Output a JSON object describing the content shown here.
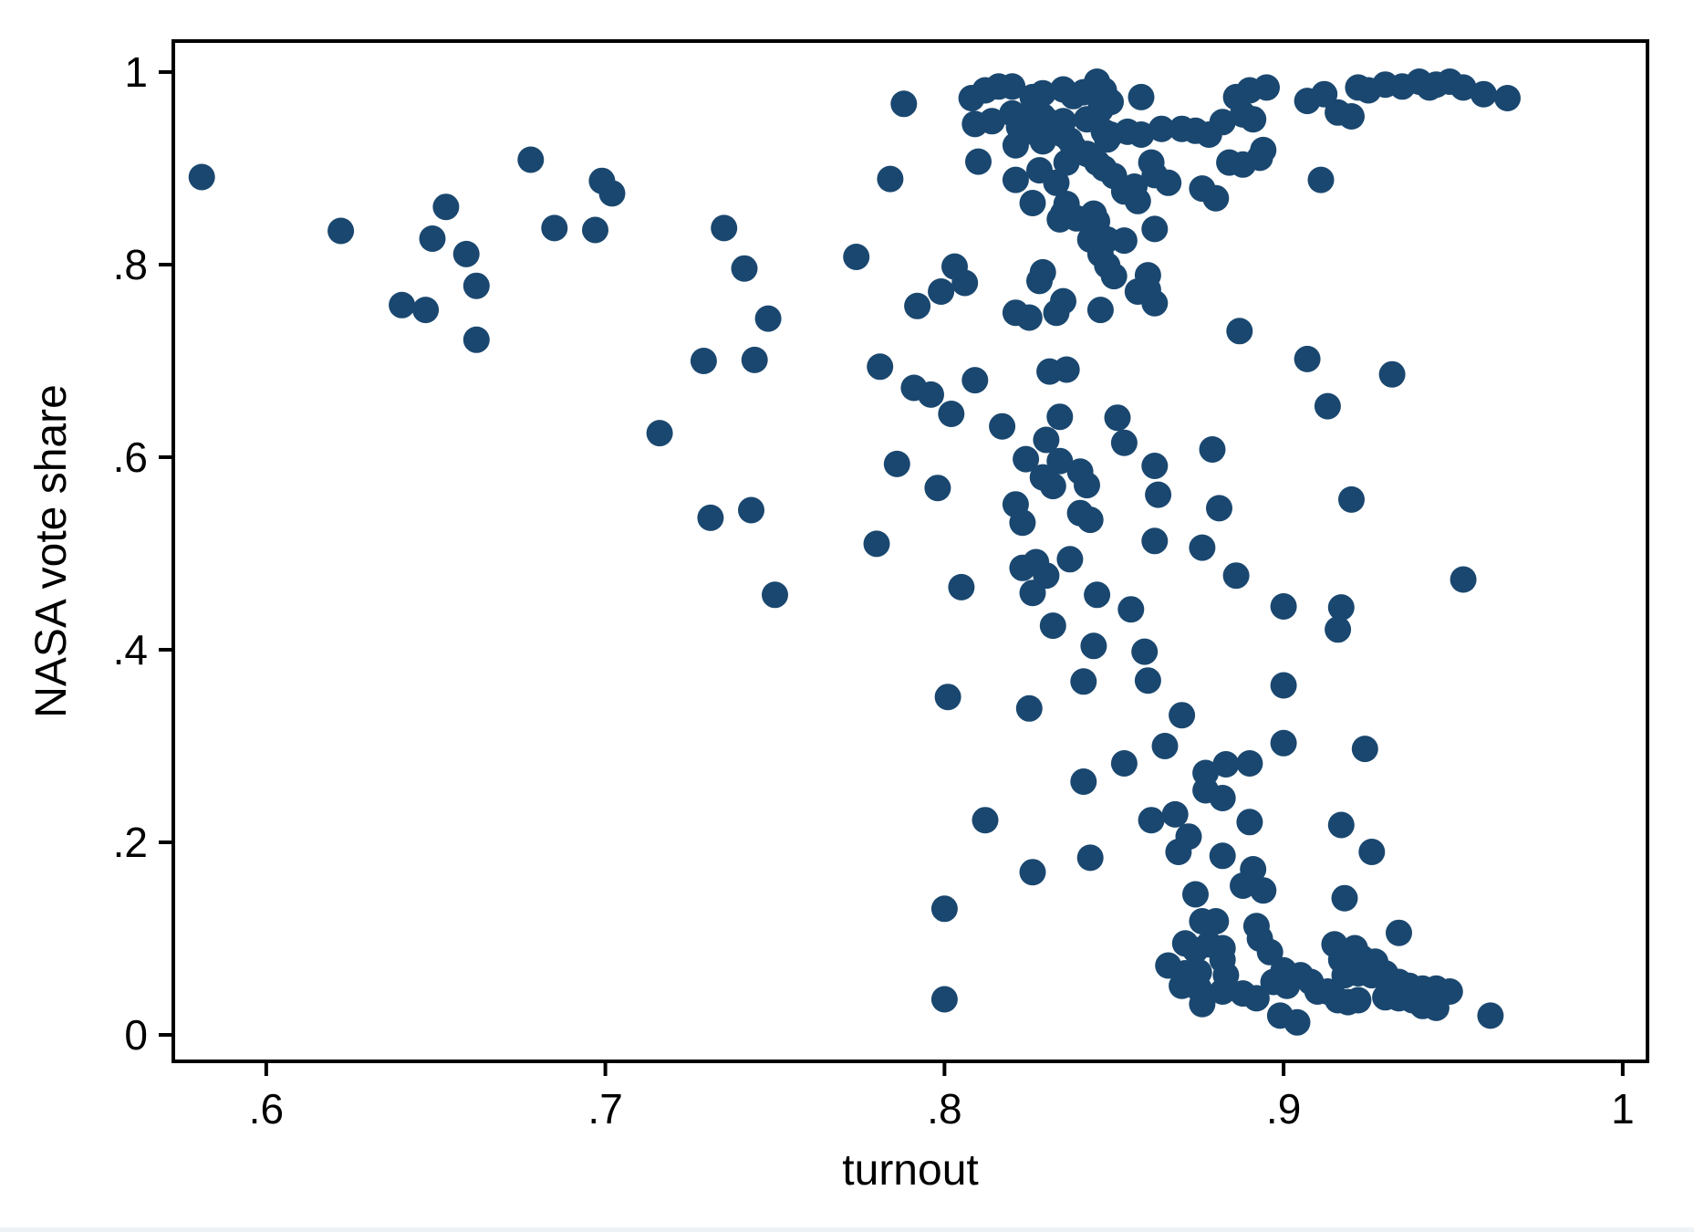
{
  "chart_data": {
    "type": "scatter",
    "title": "",
    "xlabel": "turnout",
    "ylabel": "NASA vote share",
    "xlim": [
      0.5726,
      1.0073
    ],
    "ylim": [
      -0.0275,
      1.0322
    ],
    "grid": false,
    "legend": "none",
    "marker_color": "#1a476f",
    "marker_radius_px": 14.5,
    "x_ticks": [
      {
        "value": 0.6,
        "label": ".6"
      },
      {
        "value": 0.7,
        "label": ".7"
      },
      {
        "value": 0.8,
        "label": ".8"
      },
      {
        "value": 0.9,
        "label": ".9"
      },
      {
        "value": 1.0,
        "label": "1"
      }
    ],
    "y_ticks": [
      {
        "value": 0.0,
        "label": "0"
      },
      {
        "value": 0.2,
        "label": ".2"
      },
      {
        "value": 0.4,
        "label": ".4"
      },
      {
        "value": 0.6,
        "label": ".6"
      },
      {
        "value": 0.8,
        "label": ".8"
      },
      {
        "value": 1.0,
        "label": "1"
      }
    ],
    "points": [
      [
        0.581,
        0.891
      ],
      [
        0.622,
        0.835
      ],
      [
        0.653,
        0.86
      ],
      [
        0.649,
        0.827
      ],
      [
        0.659,
        0.811
      ],
      [
        0.662,
        0.778
      ],
      [
        0.64,
        0.758
      ],
      [
        0.647,
        0.753
      ],
      [
        0.662,
        0.722
      ],
      [
        0.678,
        0.909
      ],
      [
        0.685,
        0.838
      ],
      [
        0.699,
        0.887
      ],
      [
        0.702,
        0.874
      ],
      [
        0.697,
        0.836
      ],
      [
        0.716,
        0.625
      ],
      [
        0.735,
        0.838
      ],
      [
        0.741,
        0.796
      ],
      [
        0.774,
        0.808
      ],
      [
        0.748,
        0.744
      ],
      [
        0.729,
        0.7
      ],
      [
        0.744,
        0.701
      ],
      [
        0.784,
        0.889
      ],
      [
        0.781,
        0.694
      ],
      [
        0.788,
        0.967
      ],
      [
        0.808,
        0.973
      ],
      [
        0.812,
        0.981
      ],
      [
        0.816,
        0.985
      ],
      [
        0.82,
        0.985
      ],
      [
        0.826,
        0.974
      ],
      [
        0.829,
        0.978
      ],
      [
        0.835,
        0.982
      ],
      [
        0.838,
        0.975
      ],
      [
        0.841,
        0.979
      ],
      [
        0.845,
        0.99
      ],
      [
        0.847,
        0.981
      ],
      [
        0.849,
        0.969
      ],
      [
        0.858,
        0.974
      ],
      [
        0.809,
        0.946
      ],
      [
        0.814,
        0.949
      ],
      [
        0.82,
        0.957
      ],
      [
        0.822,
        0.943
      ],
      [
        0.825,
        0.952
      ],
      [
        0.829,
        0.954
      ],
      [
        0.826,
        0.938
      ],
      [
        0.831,
        0.948
      ],
      [
        0.835,
        0.949
      ],
      [
        0.837,
        0.929
      ],
      [
        0.842,
        0.951
      ],
      [
        0.846,
        0.961
      ],
      [
        0.848,
        0.93
      ],
      [
        0.821,
        0.924
      ],
      [
        0.829,
        0.928
      ],
      [
        0.835,
        0.935
      ],
      [
        0.838,
        0.922
      ],
      [
        0.847,
        0.938
      ],
      [
        0.849,
        0.935
      ],
      [
        0.854,
        0.938
      ],
      [
        0.858,
        0.935
      ],
      [
        0.864,
        0.941
      ],
      [
        0.87,
        0.941
      ],
      [
        0.874,
        0.939
      ],
      [
        0.878,
        0.935
      ],
      [
        0.882,
        0.948
      ],
      [
        0.888,
        0.956
      ],
      [
        0.81,
        0.907
      ],
      [
        0.821,
        0.888
      ],
      [
        0.828,
        0.898
      ],
      [
        0.833,
        0.885
      ],
      [
        0.836,
        0.906
      ],
      [
        0.842,
        0.915
      ],
      [
        0.845,
        0.906
      ],
      [
        0.847,
        0.9
      ],
      [
        0.85,
        0.892
      ],
      [
        0.853,
        0.876
      ],
      [
        0.856,
        0.881
      ],
      [
        0.861,
        0.906
      ],
      [
        0.862,
        0.893
      ],
      [
        0.866,
        0.885
      ],
      [
        0.876,
        0.879
      ],
      [
        0.88,
        0.869
      ],
      [
        0.884,
        0.906
      ],
      [
        0.888,
        0.904
      ],
      [
        0.893,
        0.911
      ],
      [
        0.894,
        0.919
      ],
      [
        0.857,
        0.866
      ],
      [
        0.826,
        0.864
      ],
      [
        0.836,
        0.863
      ],
      [
        0.834,
        0.847
      ],
      [
        0.845,
        0.835
      ],
      [
        0.843,
        0.826
      ],
      [
        0.846,
        0.811
      ],
      [
        0.853,
        0.825
      ],
      [
        0.848,
        0.799
      ],
      [
        0.85,
        0.788
      ],
      [
        0.862,
        0.837
      ],
      [
        0.829,
        0.792
      ],
      [
        0.835,
        0.853
      ],
      [
        0.845,
        0.845
      ],
      [
        0.848,
        0.826
      ],
      [
        0.839,
        0.848
      ],
      [
        0.844,
        0.853
      ],
      [
        0.803,
        0.798
      ],
      [
        0.806,
        0.781
      ],
      [
        0.799,
        0.772
      ],
      [
        0.792,
        0.757
      ],
      [
        0.857,
        0.772
      ],
      [
        0.835,
        0.762
      ],
      [
        0.846,
        0.753
      ],
      [
        0.86,
        0.789
      ],
      [
        0.86,
        0.774
      ],
      [
        0.862,
        0.76
      ],
      [
        0.887,
        0.731
      ],
      [
        0.821,
        0.75
      ],
      [
        0.825,
        0.745
      ],
      [
        0.833,
        0.75
      ],
      [
        0.791,
        0.672
      ],
      [
        0.796,
        0.665
      ],
      [
        0.809,
        0.68
      ],
      [
        0.836,
        0.691
      ],
      [
        0.831,
        0.689
      ],
      [
        0.802,
        0.645
      ],
      [
        0.817,
        0.632
      ],
      [
        0.834,
        0.642
      ],
      [
        0.83,
        0.618
      ],
      [
        0.851,
        0.641
      ],
      [
        0.853,
        0.615
      ],
      [
        0.824,
        0.598
      ],
      [
        0.834,
        0.596
      ],
      [
        0.829,
        0.579
      ],
      [
        0.832,
        0.57
      ],
      [
        0.84,
        0.585
      ],
      [
        0.842,
        0.571
      ],
      [
        0.879,
        0.608
      ],
      [
        0.862,
        0.591
      ],
      [
        0.863,
        0.561
      ],
      [
        0.907,
        0.702
      ],
      [
        0.932,
        0.686
      ],
      [
        0.913,
        0.653
      ],
      [
        0.828,
        0.783
      ],
      [
        0.798,
        0.568
      ],
      [
        0.821,
        0.551
      ],
      [
        0.823,
        0.532
      ],
      [
        0.84,
        0.542
      ],
      [
        0.843,
        0.535
      ],
      [
        0.881,
        0.547
      ],
      [
        0.862,
        0.513
      ],
      [
        0.876,
        0.506
      ],
      [
        0.78,
        0.51
      ],
      [
        0.92,
        0.556
      ],
      [
        0.805,
        0.465
      ],
      [
        0.823,
        0.485
      ],
      [
        0.827,
        0.491
      ],
      [
        0.83,
        0.477
      ],
      [
        0.837,
        0.494
      ],
      [
        0.826,
        0.459
      ],
      [
        0.845,
        0.457
      ],
      [
        0.855,
        0.442
      ],
      [
        0.75,
        0.457
      ],
      [
        0.886,
        0.477
      ],
      [
        0.9,
        0.445
      ],
      [
        0.917,
        0.444
      ],
      [
        0.953,
        0.473
      ],
      [
        0.916,
        0.421
      ],
      [
        0.731,
        0.537
      ],
      [
        0.743,
        0.545
      ],
      [
        0.786,
        0.593
      ],
      [
        0.832,
        0.425
      ],
      [
        0.844,
        0.404
      ],
      [
        0.841,
        0.367
      ],
      [
        0.801,
        0.351
      ],
      [
        0.825,
        0.339
      ],
      [
        0.859,
        0.398
      ],
      [
        0.86,
        0.368
      ],
      [
        0.9,
        0.363
      ],
      [
        0.87,
        0.332
      ],
      [
        0.865,
        0.3
      ],
      [
        0.9,
        0.303
      ],
      [
        0.924,
        0.297
      ],
      [
        0.853,
        0.282
      ],
      [
        0.841,
        0.263
      ],
      [
        0.812,
        0.223
      ],
      [
        0.861,
        0.223
      ],
      [
        0.843,
        0.184
      ],
      [
        0.826,
        0.169
      ],
      [
        0.8,
        0.131
      ],
      [
        0.877,
        0.272
      ],
      [
        0.883,
        0.281
      ],
      [
        0.89,
        0.282
      ],
      [
        0.877,
        0.254
      ],
      [
        0.882,
        0.246
      ],
      [
        0.868,
        0.229
      ],
      [
        0.872,
        0.206
      ],
      [
        0.869,
        0.19
      ],
      [
        0.89,
        0.221
      ],
      [
        0.891,
        0.172
      ],
      [
        0.888,
        0.155
      ],
      [
        0.894,
        0.15
      ],
      [
        0.882,
        0.186
      ],
      [
        0.917,
        0.218
      ],
      [
        0.918,
        0.142
      ],
      [
        0.926,
        0.19
      ],
      [
        0.874,
        0.146
      ],
      [
        0.876,
        0.118
      ],
      [
        0.88,
        0.118
      ],
      [
        0.871,
        0.095
      ],
      [
        0.874,
        0.088
      ],
      [
        0.878,
        0.094
      ],
      [
        0.882,
        0.09
      ],
      [
        0.866,
        0.072
      ],
      [
        0.871,
        0.064
      ],
      [
        0.875,
        0.065
      ],
      [
        0.87,
        0.051
      ],
      [
        0.875,
        0.048
      ],
      [
        0.882,
        0.078
      ],
      [
        0.883,
        0.062
      ],
      [
        0.876,
        0.032
      ],
      [
        0.882,
        0.045
      ],
      [
        0.888,
        0.043
      ],
      [
        0.892,
        0.038
      ],
      [
        0.892,
        0.113
      ],
      [
        0.893,
        0.1
      ],
      [
        0.896,
        0.086
      ],
      [
        0.9,
        0.067
      ],
      [
        0.897,
        0.055
      ],
      [
        0.901,
        0.051
      ],
      [
        0.899,
        0.02
      ],
      [
        0.904,
        0.013
      ],
      [
        0.905,
        0.062
      ],
      [
        0.908,
        0.055
      ],
      [
        0.91,
        0.045
      ],
      [
        0.913,
        0.045
      ],
      [
        0.916,
        0.036
      ],
      [
        0.919,
        0.034
      ],
      [
        0.922,
        0.036
      ],
      [
        0.915,
        0.094
      ],
      [
        0.917,
        0.078
      ],
      [
        0.921,
        0.09
      ],
      [
        0.923,
        0.08
      ],
      [
        0.927,
        0.076
      ],
      [
        0.918,
        0.062
      ],
      [
        0.922,
        0.064
      ],
      [
        0.926,
        0.062
      ],
      [
        0.93,
        0.064
      ],
      [
        0.934,
        0.055
      ],
      [
        0.937,
        0.051
      ],
      [
        0.941,
        0.048
      ],
      [
        0.945,
        0.048
      ],
      [
        0.949,
        0.045
      ],
      [
        0.941,
        0.03
      ],
      [
        0.945,
        0.028
      ],
      [
        0.938,
        0.036
      ],
      [
        0.934,
        0.038
      ],
      [
        0.93,
        0.039
      ],
      [
        0.961,
        0.02
      ],
      [
        0.934,
        0.106
      ],
      [
        0.8,
        0.037
      ],
      [
        0.886,
        0.974
      ],
      [
        0.89,
        0.981
      ],
      [
        0.895,
        0.984
      ],
      [
        0.891,
        0.951
      ],
      [
        0.907,
        0.97
      ],
      [
        0.912,
        0.977
      ],
      [
        0.916,
        0.958
      ],
      [
        0.92,
        0.954
      ],
      [
        0.922,
        0.984
      ],
      [
        0.925,
        0.981
      ],
      [
        0.93,
        0.987
      ],
      [
        0.935,
        0.985
      ],
      [
        0.94,
        0.99
      ],
      [
        0.943,
        0.984
      ],
      [
        0.945,
        0.987
      ],
      [
        0.949,
        0.99
      ],
      [
        0.953,
        0.984
      ],
      [
        0.959,
        0.977
      ],
      [
        0.966,
        0.973
      ],
      [
        0.911,
        0.888
      ]
    ]
  }
}
